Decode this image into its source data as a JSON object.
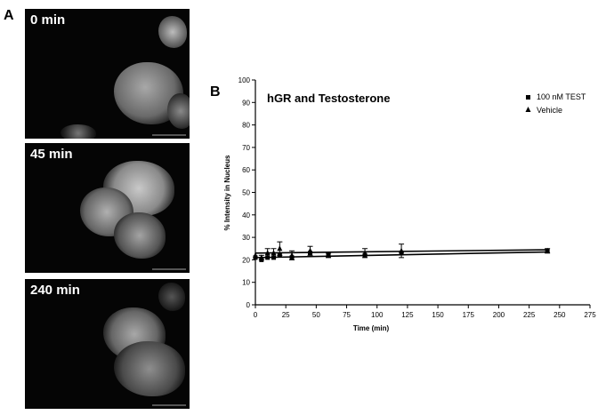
{
  "panel_a": {
    "letter": "A",
    "images": [
      {
        "label": "0 min"
      },
      {
        "label": "45 min"
      },
      {
        "label": "240 min"
      }
    ]
  },
  "panel_b": {
    "letter": "B"
  },
  "chart_data": {
    "type": "line",
    "title": "hGR and Testosterone",
    "xlabel": "Time (min)",
    "ylabel": "% Intensity in Nucleus",
    "xlim": [
      0,
      275
    ],
    "ylim": [
      0,
      100
    ],
    "xticks": [
      0,
      25,
      50,
      75,
      100,
      125,
      150,
      175,
      200,
      225,
      250,
      275
    ],
    "yticks": [
      0,
      10,
      20,
      30,
      40,
      50,
      60,
      70,
      80,
      90,
      100
    ],
    "legend_position": "top-right",
    "series": [
      {
        "name": "100 nM TEST",
        "marker": "square",
        "points": [
          {
            "x": 0,
            "y": 21
          },
          {
            "x": 5,
            "y": 20
          },
          {
            "x": 10,
            "y": 21
          },
          {
            "x": 15,
            "y": 21
          },
          {
            "x": 20,
            "y": 22
          },
          {
            "x": 30,
            "y": 21
          },
          {
            "x": 45,
            "y": 23
          },
          {
            "x": 60,
            "y": 22
          },
          {
            "x": 90,
            "y": 22
          },
          {
            "x": 120,
            "y": 23
          },
          {
            "x": 240,
            "y": 24
          }
        ],
        "fit": [
          [
            0,
            21
          ],
          [
            240,
            23.5
          ]
        ]
      },
      {
        "name": "Vehicle",
        "marker": "triangle",
        "points": [
          {
            "x": 0,
            "y": 22
          },
          {
            "x": 5,
            "y": 21
          },
          {
            "x": 10,
            "y": 23
          },
          {
            "x": 15,
            "y": 23
          },
          {
            "x": 20,
            "y": 25
          },
          {
            "x": 30,
            "y": 22
          },
          {
            "x": 45,
            "y": 24
          },
          {
            "x": 60,
            "y": 22
          },
          {
            "x": 90,
            "y": 23
          },
          {
            "x": 120,
            "y": 24
          },
          {
            "x": 240,
            "y": 24
          }
        ],
        "fit": [
          [
            0,
            23
          ],
          [
            240,
            24.5
          ]
        ],
        "errors": [
          0,
          1,
          2,
          2,
          3,
          2,
          2,
          1,
          2,
          3,
          1
        ]
      }
    ]
  },
  "colors": {
    "background": "#ffffff",
    "axis": "#000000",
    "micrograph_background": "#050505",
    "cell_fill": "#9a9a9a"
  }
}
